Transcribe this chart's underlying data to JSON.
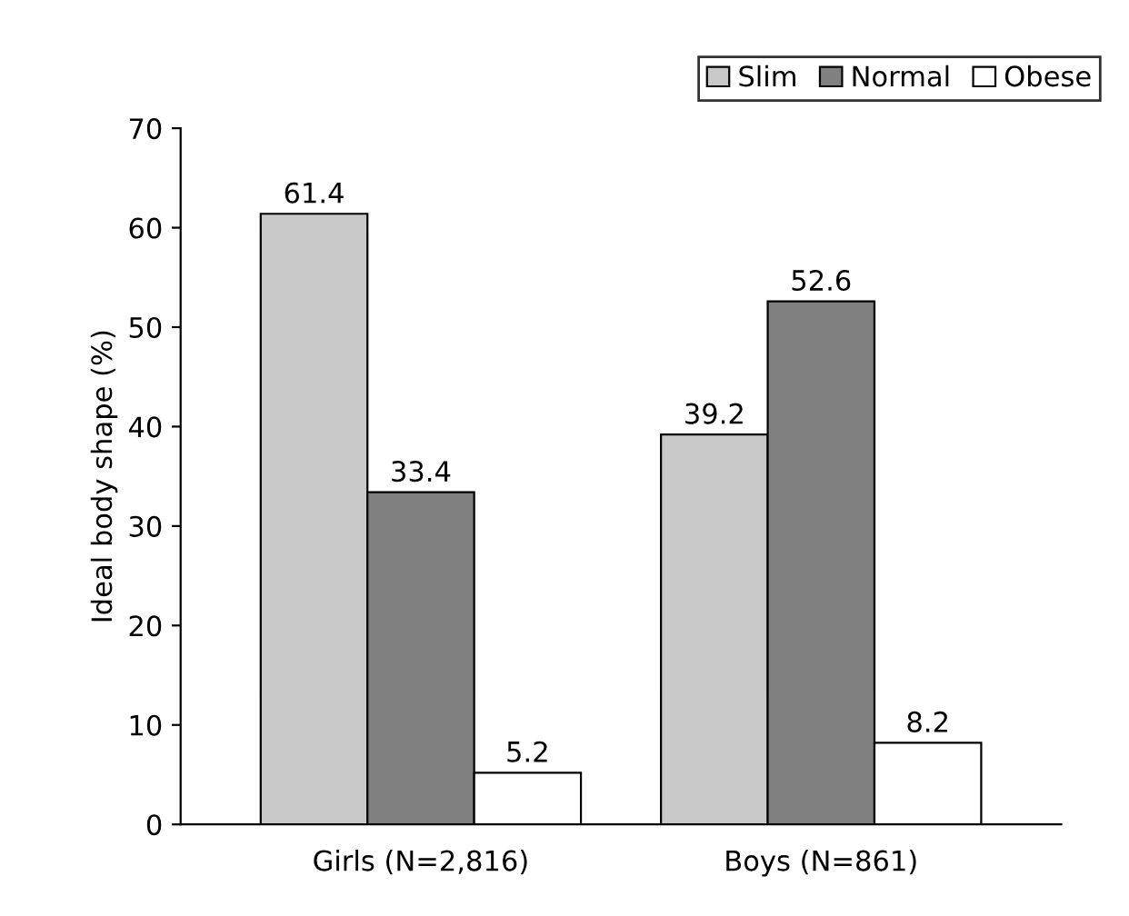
{
  "chart_data": {
    "type": "bar",
    "ylabel": "Ideal body shape (%)",
    "categories": [
      "Girls (N=2,816)",
      "Boys (N=861)"
    ],
    "series": [
      {
        "name": "Slim",
        "color": "#c8c8c8",
        "values": [
          61.4,
          39.2
        ]
      },
      {
        "name": "Normal",
        "color": "#808080",
        "values": [
          33.4,
          52.6
        ]
      },
      {
        "name": "Obese",
        "color": "#ffffff",
        "values": [
          5.2,
          8.2
        ]
      }
    ],
    "ylim": [
      0,
      70
    ],
    "yticks": [
      0,
      10,
      20,
      30,
      40,
      50,
      60,
      70
    ],
    "grid": false,
    "legend": "top right",
    "data_labels": true
  }
}
